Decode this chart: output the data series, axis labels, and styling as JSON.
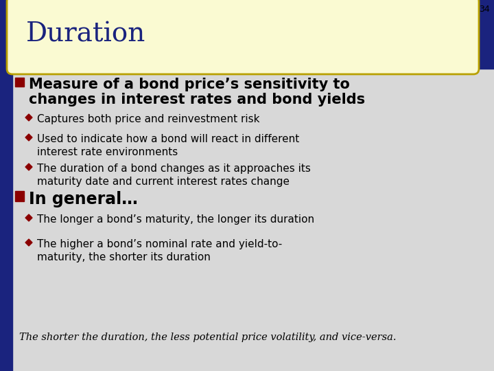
{
  "slide_number": "34",
  "title": "Duration",
  "background_color": "#1a237e",
  "title_bg_color": "#fafad2",
  "title_border_color": "#b8a000",
  "title_color": "#1a237e",
  "content_bg_color": "#d8d8d8",
  "bullet_square_color": "#8b0000",
  "bullet_diamond_color": "#8b0000",
  "bullet1_line1": "Measure of a bond price’s sensitivity to",
  "bullet1_line2": "changes in interest rates and bond yields",
  "sub_bullets1": [
    "Captures both price and reinvestment risk",
    "Used to indicate how a bond will react in different\ninterest rate environments",
    "The duration of a bond changes as it approaches its\nmaturity date and current interest rates change"
  ],
  "bullet2_text": "In general…",
  "sub_bullets2": [
    "The longer a bond’s maturity, the longer its duration",
    "The higher a bond’s nominal rate and yield-to-\nmaturity, the shorter its duration"
  ],
  "footer": "The shorter the duration, the less potential price volatility, and vice-versa."
}
